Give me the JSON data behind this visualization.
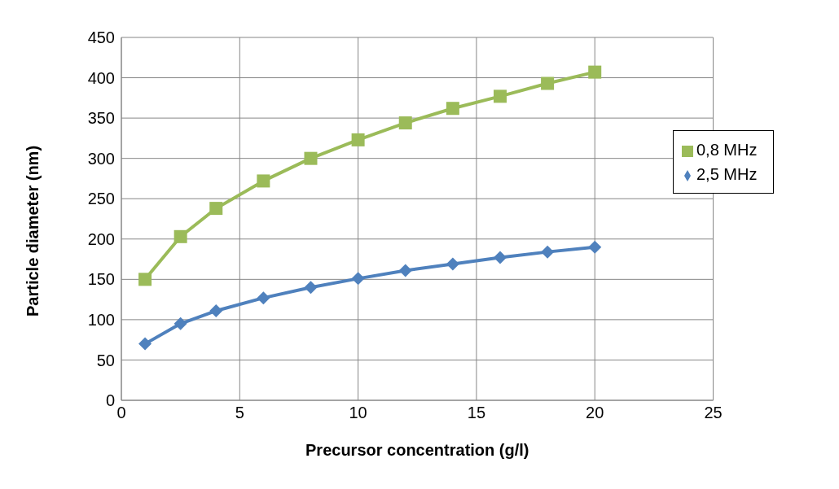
{
  "chart_data": {
    "type": "line",
    "xlabel": "Precursor concentration (g/l)",
    "ylabel": "Particle diameter (nm)",
    "x": [
      1,
      2.5,
      4,
      6,
      8,
      10,
      12,
      14,
      16,
      18,
      20
    ],
    "series": [
      {
        "name": "2,5 MHz",
        "color": "#4f81bd",
        "marker": "diamond",
        "values": [
          70,
          95,
          111,
          127,
          140,
          151,
          161,
          169,
          177,
          184,
          190
        ]
      },
      {
        "name": "0,8 MHz",
        "color": "#9bbb59",
        "marker": "square",
        "values": [
          150,
          203,
          238,
          272,
          300,
          323,
          344,
          362,
          377,
          393,
          407
        ]
      }
    ],
    "xlim": [
      0,
      25
    ],
    "xticks": [
      0,
      5,
      10,
      15,
      20,
      25
    ],
    "ylim": [
      0,
      450
    ],
    "yticks": [
      0,
      50,
      100,
      150,
      200,
      250,
      300,
      350,
      400,
      450
    ],
    "grid": true,
    "legend": "right",
    "line_style": "solid"
  }
}
